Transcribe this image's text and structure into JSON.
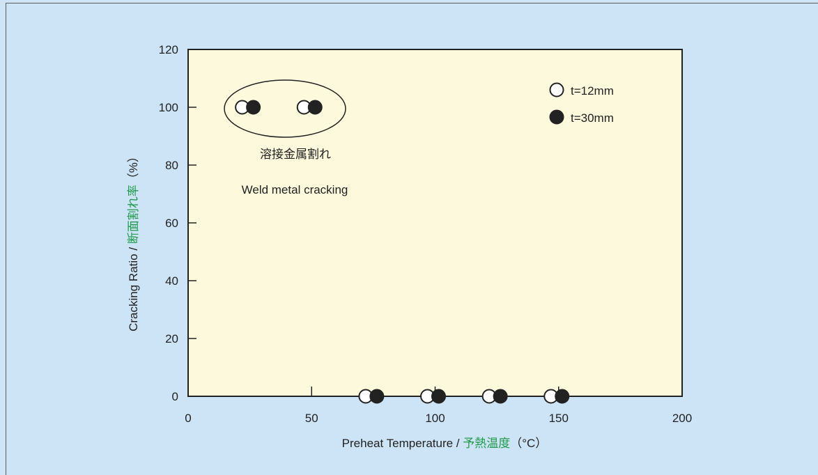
{
  "chart_data": {
    "type": "scatter",
    "xlim": [
      0,
      200
    ],
    "ylim": [
      0,
      120
    ],
    "x_ticks": [
      "0",
      "50",
      "100",
      "150",
      "200"
    ],
    "y_ticks": [
      "0",
      "20",
      "40",
      "60",
      "80",
      "100",
      "120"
    ],
    "xlabel": {
      "en": "Preheat Temperature / ",
      "jp": "予熱温度",
      "unit": "（°C）"
    },
    "ylabel": {
      "en": "Cracking Ratio / ",
      "jp": "断面割れ率",
      "unit": "（%）"
    },
    "plot_background": "#fdf9dc",
    "jp_label_color": "#1f9a4a",
    "legend_position": "top-right",
    "series": [
      {
        "name": "t=12mm",
        "marker": "open-circle",
        "points": [
          {
            "x": 25,
            "y": 100
          },
          {
            "x": 50,
            "y": 100
          },
          {
            "x": 75,
            "y": 0
          },
          {
            "x": 100,
            "y": 0
          },
          {
            "x": 125,
            "y": 0
          },
          {
            "x": 150,
            "y": 0
          }
        ]
      },
      {
        "name": "t=30mm",
        "marker": "filled-circle",
        "points": [
          {
            "x": 25,
            "y": 100
          },
          {
            "x": 50,
            "y": 100
          },
          {
            "x": 75,
            "y": 0
          },
          {
            "x": 100,
            "y": 0
          },
          {
            "x": 125,
            "y": 0
          },
          {
            "x": 150,
            "y": 0
          }
        ]
      }
    ],
    "annotations": {
      "jp": "溶接金属割れ",
      "en": "Weld metal cracking"
    }
  }
}
